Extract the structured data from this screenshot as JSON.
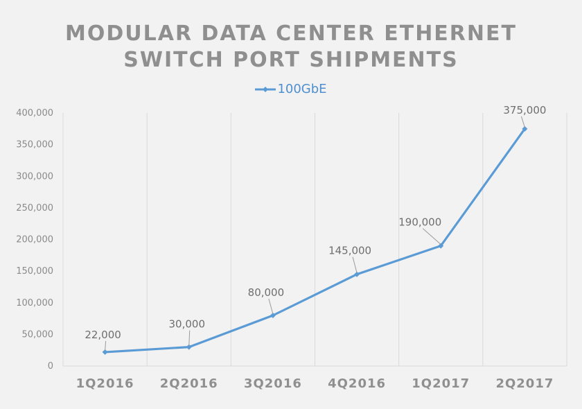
{
  "chart_data": {
    "type": "line",
    "title_lines": [
      "MODULAR DATA CENTER ETHERNET",
      "SWITCH PORT SHIPMENTS"
    ],
    "categories": [
      "1Q2016",
      "2Q2016",
      "3Q2016",
      "4Q2016",
      "1Q2017",
      "2Q2017"
    ],
    "series": [
      {
        "name": "100GbE",
        "values": [
          22000,
          30000,
          80000,
          145000,
          190000,
          375000
        ],
        "data_labels": [
          "22,000",
          "30,000",
          "80,000",
          "145,000",
          "190,000",
          "375,000"
        ],
        "color": "#5b9bd5"
      }
    ],
    "y_ticks": [
      "0",
      "50,000",
      "100,000",
      "150,000",
      "200,000",
      "250,000",
      "300,000",
      "350,000",
      "400,000"
    ],
    "ylim": [
      0,
      400000
    ],
    "grid": "vertical",
    "legend_position": "top",
    "colors": {
      "background": "#f2f2f2",
      "title": "#8f8f8f",
      "gridline": "#d9d9d9",
      "line": "#5b9bd5",
      "legend_text": "#4f8fd0"
    }
  }
}
